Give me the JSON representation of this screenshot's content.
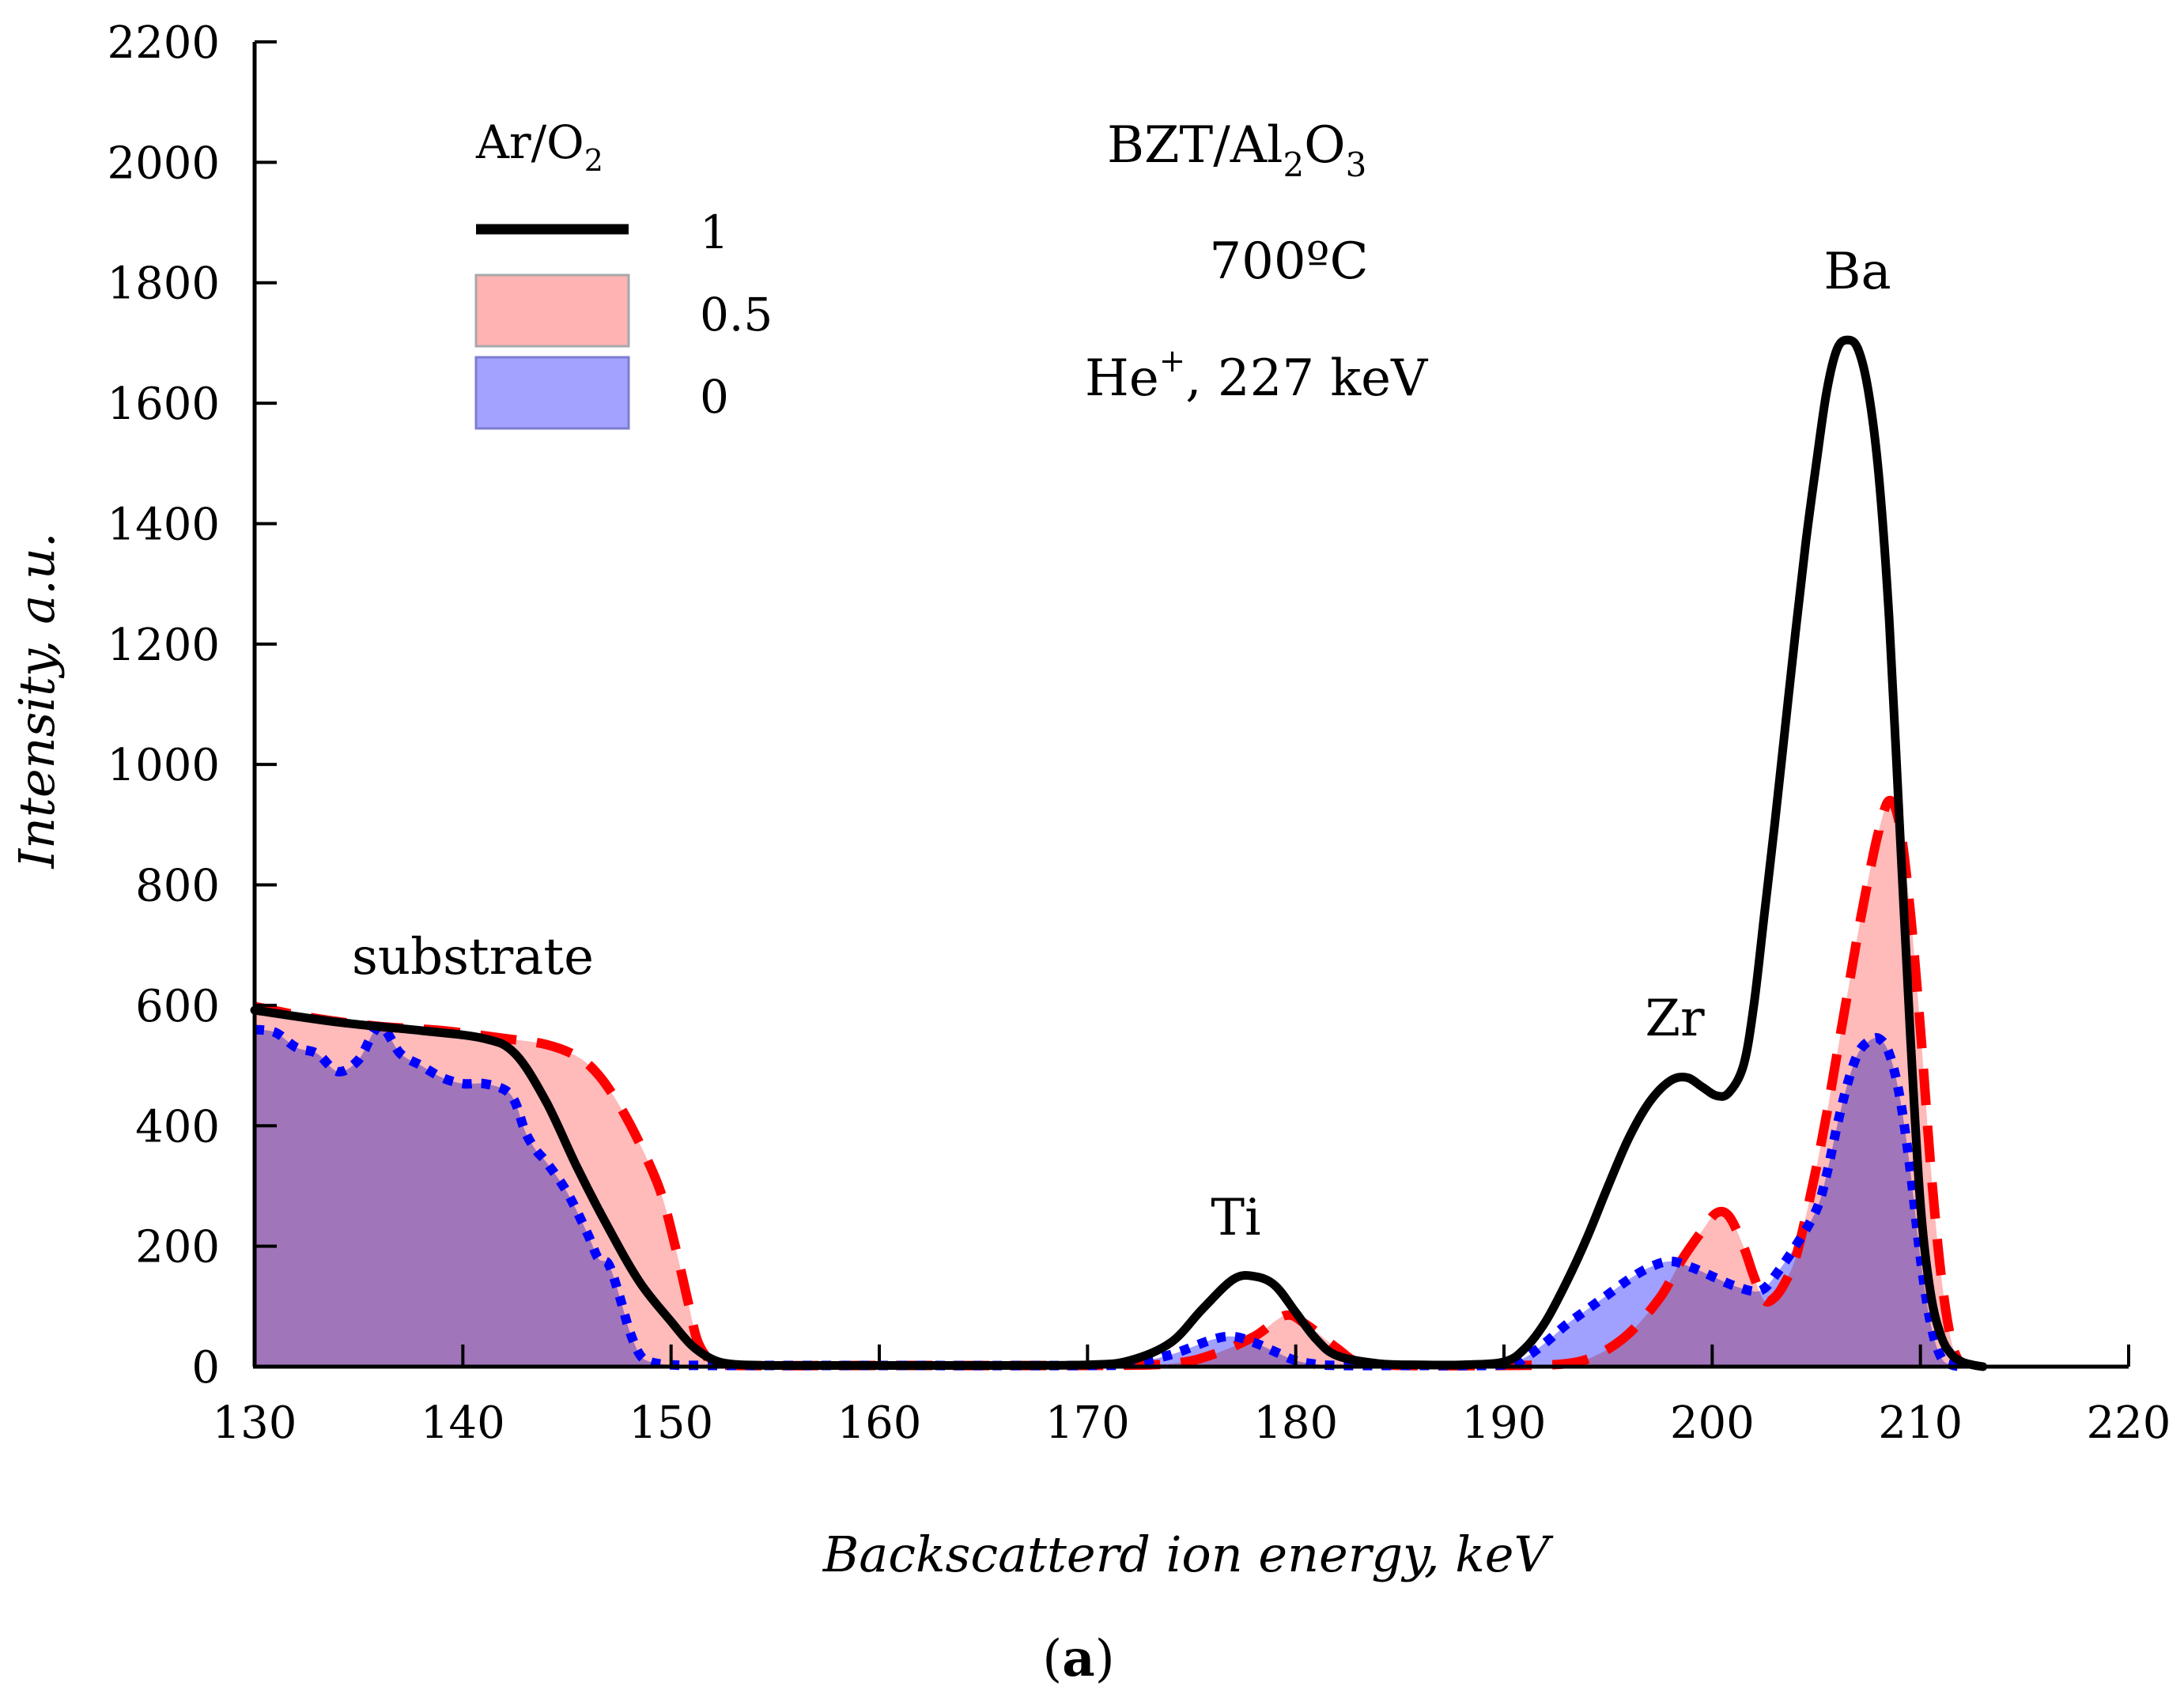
{
  "colors": {
    "series_1": "#000000",
    "series_05_line": "#ff0000",
    "series_05_fill": "#ffb3b3",
    "series_0_line": "#0000ff",
    "series_0_fill": "#8f8fff",
    "background": "#ffffff"
  },
  "chart_data": {
    "type": "line",
    "title": "",
    "xlabel": "Backscatterd ion energy, keV",
    "ylabel": "Intensity, a.u.",
    "xlim": [
      130,
      220
    ],
    "ylim": [
      0,
      2200
    ],
    "xticks": [
      130,
      140,
      150,
      160,
      170,
      180,
      190,
      200,
      210,
      220
    ],
    "yticks": [
      0,
      200,
      400,
      600,
      800,
      1000,
      1200,
      1400,
      1600,
      1800,
      2000,
      2200
    ],
    "legend": {
      "title_base": "Ar/O",
      "title_sub": "2",
      "position": "top-left",
      "entries": [
        "1",
        "0.5",
        "0"
      ]
    },
    "annotations": {
      "sample_base": "BZT/Al",
      "sample_sub1": "2",
      "sample_mid": "O",
      "sample_sub2": "3",
      "temperature": "700ºC",
      "ion_base": "He",
      "ion_sup": "+",
      "ion_rest": ", 227 keV",
      "substrate": "substrate",
      "ti": "Ti",
      "zr": "Zr",
      "ba": "Ba",
      "panel_open": "(",
      "panel_letter": "a",
      "panel_close": ")"
    },
    "series": [
      {
        "name": "1",
        "style": "solid line",
        "x": [
          130,
          134,
          138,
          141,
          142.5,
          144,
          145.5,
          147,
          148.5,
          150,
          151,
          152,
          153,
          155,
          160,
          165,
          170,
          172,
          174,
          175.5,
          177,
          178,
          179,
          180,
          181,
          182,
          184,
          186,
          188,
          190,
          191,
          192,
          193,
          194,
          195,
          196,
          197,
          198,
          198.8,
          199.5,
          200.2,
          200.8,
          201.5,
          202,
          202.5,
          203,
          203.5,
          204,
          204.5,
          205,
          205.5,
          206,
          206.5,
          207,
          207.5,
          208,
          208.5,
          209,
          209.5,
          210,
          210.5,
          211,
          211.5,
          212,
          212.5,
          213
        ],
        "y": [
          592,
          572,
          558,
          545,
          520,
          440,
          330,
          230,
          140,
          75,
          35,
          12,
          4,
          2,
          2,
          2,
          3,
          10,
          40,
          95,
          145,
          150,
          135,
          90,
          45,
          18,
          5,
          3,
          3,
          8,
          30,
          75,
          140,
          215,
          300,
          380,
          440,
          475,
          480,
          465,
          450,
          455,
          500,
          600,
          750,
          900,
          1060,
          1220,
          1370,
          1500,
          1620,
          1690,
          1705,
          1690,
          1620,
          1480,
          1240,
          900,
          560,
          270,
          120,
          50,
          20,
          8,
          3,
          0
        ]
      },
      {
        "name": "0.5",
        "style": "dashed line with filled area",
        "x": [
          130,
          133,
          136,
          139,
          142,
          144,
          145.5,
          146.5,
          147.5,
          148.5,
          149.5,
          150.2,
          150.8,
          151.3,
          152,
          153,
          160,
          170,
          174,
          176,
          178,
          179.5,
          180.5,
          182,
          183,
          185,
          190,
          193,
          194.5,
          196,
          197.5,
          198.5,
          199.5,
          200.2,
          200.8,
          201.5,
          202,
          202.5,
          203,
          203.5,
          204,
          204.5,
          205,
          205.5,
          206,
          206.5,
          207,
          207.5,
          208,
          208.5,
          209,
          209.5,
          210,
          210.5,
          211,
          211.5,
          212
        ],
        "y": [
          598,
          578,
          565,
          558,
          545,
          535,
          515,
          485,
          435,
          370,
          290,
          200,
          110,
          40,
          8,
          2,
          2,
          2,
          5,
          20,
          50,
          85,
          70,
          30,
          8,
          2,
          2,
          5,
          20,
          55,
          115,
          175,
          225,
          255,
          250,
          200,
          150,
          110,
          115,
          140,
          180,
          250,
          330,
          420,
          520,
          620,
          720,
          810,
          890,
          940,
          900,
          760,
          560,
          330,
          150,
          40,
          0
        ]
      },
      {
        "name": "0",
        "style": "dotted line with filled area",
        "x": [
          130,
          131,
          132,
          133,
          134,
          135,
          136,
          137,
          138,
          139,
          140,
          141,
          142,
          142.5,
          143,
          143.5,
          144,
          145,
          146,
          146.5,
          147,
          147.5,
          148,
          148.5,
          149,
          150,
          152,
          160,
          170,
          172,
          174,
          176,
          177,
          178,
          179,
          180,
          181,
          182,
          185,
          190,
          191,
          192,
          193,
          194,
          195,
          196,
          197,
          198,
          199,
          200,
          201,
          202,
          202.5,
          203,
          204,
          205,
          205.5,
          206,
          206.5,
          207,
          207.5,
          208,
          208.5,
          209,
          209.5,
          210,
          210.5,
          211,
          211.5,
          212
        ],
        "y": [
          560,
          555,
          530,
          520,
          490,
          510,
          565,
          520,
          500,
          480,
          470,
          470,
          460,
          440,
          390,
          360,
          340,
          290,
          220,
          180,
          170,
          120,
          60,
          20,
          8,
          3,
          2,
          2,
          2,
          5,
          20,
          45,
          50,
          40,
          25,
          10,
          4,
          2,
          2,
          3,
          15,
          40,
          70,
          95,
          120,
          145,
          165,
          175,
          165,
          150,
          135,
          125,
          130,
          150,
          200,
          260,
          320,
          400,
          470,
          520,
          540,
          545,
          520,
          450,
          330,
          180,
          70,
          15,
          3,
          0
        ]
      }
    ]
  }
}
